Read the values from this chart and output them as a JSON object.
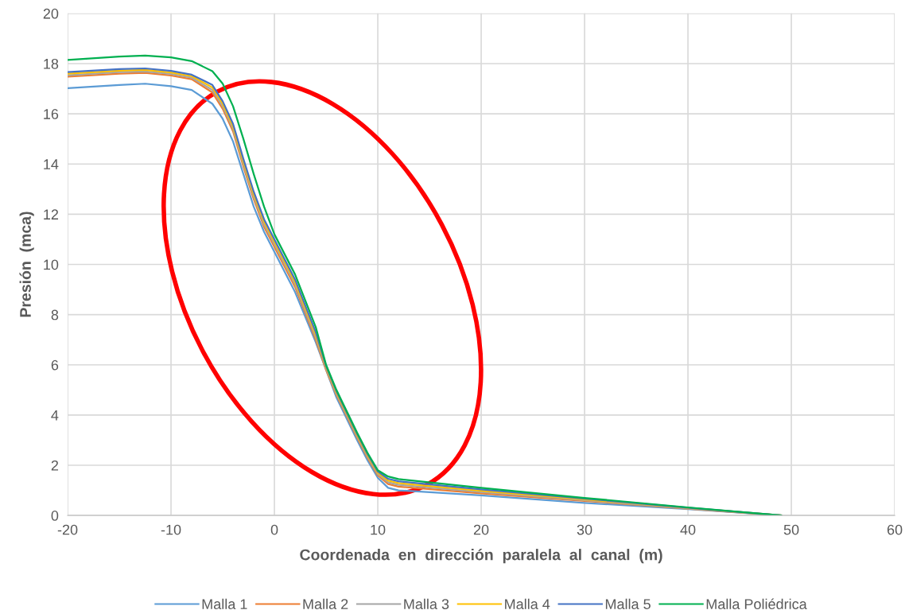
{
  "chart_data": {
    "type": "line",
    "xlabel": "Coordenada  en  dirección  paralela  al  canal  (m)",
    "ylabel": "Presión  (mca)",
    "x": [
      -20,
      -15,
      -12.5,
      -10,
      -8,
      -6,
      -5,
      -4,
      -3,
      -2,
      -1,
      0,
      2,
      4,
      5,
      6,
      8,
      9,
      10,
      11,
      12,
      20,
      30,
      40,
      49
    ],
    "series": [
      {
        "name": "Malla 1",
        "color": "#5b9bd5",
        "values": [
          17.02,
          17.15,
          17.2,
          17.1,
          16.95,
          16.4,
          15.8,
          14.9,
          13.6,
          12.3,
          11.3,
          10.5,
          8.9,
          6.9,
          5.8,
          4.7,
          3.0,
          2.2,
          1.5,
          1.1,
          1.0,
          0.8,
          0.5,
          0.25,
          0
        ]
      },
      {
        "name": "Malla 2",
        "color": "#ed7d31",
        "values": [
          17.48,
          17.6,
          17.63,
          17.53,
          17.38,
          16.85,
          16.2,
          15.3,
          13.9,
          12.6,
          11.5,
          10.7,
          9.1,
          7.0,
          5.8,
          4.8,
          3.1,
          2.3,
          1.6,
          1.25,
          1.15,
          0.88,
          0.58,
          0.27,
          0
        ]
      },
      {
        "name": "Malla 3",
        "color": "#a5a5a5",
        "values": [
          17.54,
          17.66,
          17.69,
          17.59,
          17.44,
          16.95,
          16.3,
          15.4,
          14.0,
          12.7,
          11.6,
          10.8,
          9.2,
          7.1,
          5.85,
          4.85,
          3.15,
          2.35,
          1.65,
          1.32,
          1.22,
          0.93,
          0.61,
          0.28,
          0
        ]
      },
      {
        "name": "Malla 4",
        "color": "#ffc000",
        "values": [
          17.6,
          17.72,
          17.75,
          17.65,
          17.5,
          17.05,
          16.4,
          15.5,
          14.1,
          12.8,
          11.7,
          10.9,
          9.3,
          7.2,
          5.9,
          4.9,
          3.2,
          2.4,
          1.7,
          1.39,
          1.29,
          0.98,
          0.64,
          0.3,
          0
        ]
      },
      {
        "name": "Malla 5",
        "color": "#4472c4",
        "values": [
          17.66,
          17.78,
          17.81,
          17.71,
          17.56,
          17.15,
          16.5,
          15.6,
          14.2,
          12.9,
          11.8,
          11.0,
          9.4,
          7.3,
          5.95,
          4.95,
          3.25,
          2.45,
          1.75,
          1.46,
          1.36,
          1.04,
          0.67,
          0.31,
          0
        ]
      },
      {
        "name": "Malla Poliédrica",
        "color": "#00b050",
        "values": [
          18.15,
          18.28,
          18.32,
          18.25,
          18.1,
          17.7,
          17.2,
          16.3,
          15.0,
          13.6,
          12.3,
          11.2,
          9.6,
          7.5,
          6.0,
          5.0,
          3.3,
          2.5,
          1.8,
          1.55,
          1.45,
          1.1,
          0.7,
          0.32,
          0
        ]
      }
    ],
    "xlim": [
      -20,
      60
    ],
    "xticks": [
      -20,
      -10,
      0,
      10,
      20,
      30,
      40,
      50,
      60
    ],
    "ylim": [
      0,
      20
    ],
    "yticks": [
      0,
      2,
      4,
      6,
      8,
      10,
      12,
      14,
      16,
      18,
      20
    ],
    "grid": true,
    "legend": "bottom",
    "marker": "none",
    "line_style": "solid"
  }
}
